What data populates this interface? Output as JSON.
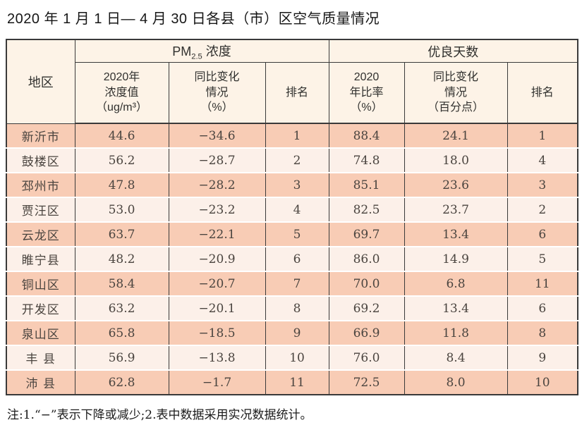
{
  "page": {
    "title": "2020 年 1 月 1 日— 4 月 30 日各县（市）区空气质量情况",
    "note": "注:1.“−”表示下降或减少;2.表中数据采用实况数据统计。"
  },
  "colors": {
    "row_odd": "#f8ccb5",
    "row_even": "#fcf0e9",
    "header_bg": "#fdf3e7",
    "border": "#3a3a3a"
  },
  "table": {
    "headers": {
      "region": "地区",
      "pm_group": {
        "pm": "PM",
        "pm_sub": "2.5",
        "rest": " 浓度"
      },
      "good_days_group": "优良天数",
      "sub": {
        "pm_value": {
          "line1": "2020年",
          "line2": "浓度值",
          "unit": "（ug/m³）"
        },
        "pm_change": {
          "line1": "同比变化",
          "line2": "情况",
          "unit": "（%）"
        },
        "pm_rank": "排名",
        "gd_ratio": {
          "line1": "2020",
          "line2": "年比率",
          "unit": "（%）"
        },
        "gd_change": {
          "line1": "同比变化",
          "line2": "情况",
          "unit": "（百分点）"
        },
        "gd_rank": "排名"
      }
    },
    "rows": [
      {
        "region": "新沂市",
        "pm_value": "44.6",
        "pm_change": "−34.6",
        "pm_rank": "1",
        "gd_ratio": "88.4",
        "gd_change": "24.1",
        "gd_rank": "1"
      },
      {
        "region": "鼓楼区",
        "pm_value": "56.2",
        "pm_change": "−28.7",
        "pm_rank": "2",
        "gd_ratio": "74.8",
        "gd_change": "18.0",
        "gd_rank": "4"
      },
      {
        "region": "邳州市",
        "pm_value": "47.8",
        "pm_change": "−28.2",
        "pm_rank": "3",
        "gd_ratio": "85.1",
        "gd_change": "23.6",
        "gd_rank": "3"
      },
      {
        "region": "贾汪区",
        "pm_value": "53.0",
        "pm_change": "−23.2",
        "pm_rank": "4",
        "gd_ratio": "82.5",
        "gd_change": "23.7",
        "gd_rank": "2"
      },
      {
        "region": "云龙区",
        "pm_value": "63.7",
        "pm_change": "−22.1",
        "pm_rank": "5",
        "gd_ratio": "69.7",
        "gd_change": "13.4",
        "gd_rank": "6"
      },
      {
        "region": "睢宁县",
        "pm_value": "48.2",
        "pm_change": "−20.9",
        "pm_rank": "6",
        "gd_ratio": "86.0",
        "gd_change": "14.9",
        "gd_rank": "5"
      },
      {
        "region": "铜山区",
        "pm_value": "58.4",
        "pm_change": "−20.7",
        "pm_rank": "7",
        "gd_ratio": "70.0",
        "gd_change": "6.8",
        "gd_rank": "11"
      },
      {
        "region": "开发区",
        "pm_value": "63.2",
        "pm_change": "−20.1",
        "pm_rank": "8",
        "gd_ratio": "69.2",
        "gd_change": "13.4",
        "gd_rank": "6"
      },
      {
        "region": "泉山区",
        "pm_value": "65.8",
        "pm_change": "−18.5",
        "pm_rank": "9",
        "gd_ratio": "66.9",
        "gd_change": "11.8",
        "gd_rank": "8"
      },
      {
        "region": "丰 县",
        "pm_value": "56.9",
        "pm_change": "−13.8",
        "pm_rank": "10",
        "gd_ratio": "76.0",
        "gd_change": "8.4",
        "gd_rank": "9"
      },
      {
        "region": "沛 县",
        "pm_value": "62.8",
        "pm_change": "−1.7",
        "pm_rank": "11",
        "gd_ratio": "72.5",
        "gd_change": "8.0",
        "gd_rank": "10"
      }
    ]
  }
}
